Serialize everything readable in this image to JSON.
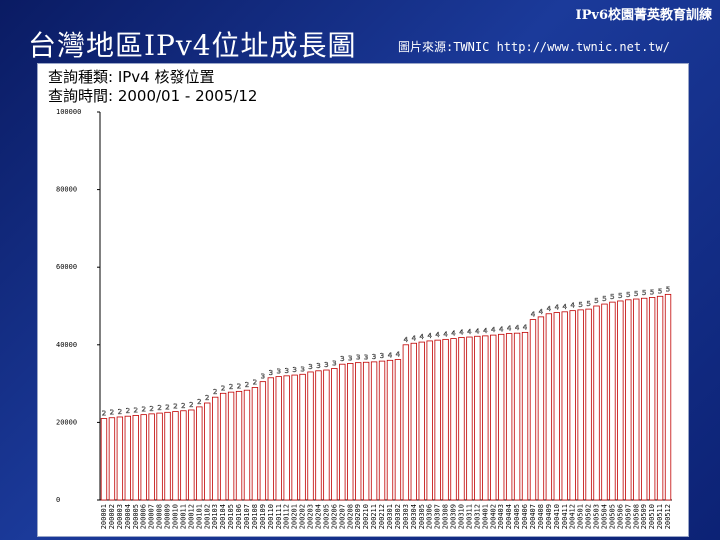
{
  "header": {
    "course_title": "IPv6校園菁英教育訓練",
    "slide_title": "台灣地區IPv4位址成長圖",
    "source_note": "圖片來源:TWNIC http://www.twnic.net.tw/"
  },
  "query": {
    "type_line": "查詢種類: IPv4 核發位置",
    "time_line": "查詢時間: 2000/01 - 2005/12"
  },
  "colors": {
    "bar_stroke": "#c00000",
    "axis": "#000000"
  },
  "chart_data": {
    "type": "bar",
    "title": "",
    "xlabel": "",
    "ylabel": "",
    "ylim": [
      0,
      100000
    ],
    "y_ticks": [
      0,
      20000,
      40000,
      60000,
      80000,
      100000
    ],
    "y_tick_labels": [
      "0",
      "20000",
      "40000",
      "60000",
      "80000",
      "100000"
    ],
    "categories": [
      "200001",
      "200002",
      "200003",
      "200004",
      "200005",
      "200006",
      "200007",
      "200008",
      "200009",
      "200010",
      "200011",
      "200012",
      "200101",
      "200102",
      "200103",
      "200104",
      "200105",
      "200106",
      "200107",
      "200108",
      "200109",
      "200110",
      "200111",
      "200112",
      "200201",
      "200202",
      "200203",
      "200204",
      "200205",
      "200206",
      "200207",
      "200208",
      "200209",
      "200210",
      "200211",
      "200212",
      "200301",
      "200302",
      "200303",
      "200304",
      "200305",
      "200306",
      "200307",
      "200308",
      "200309",
      "200310",
      "200311",
      "200312",
      "200401",
      "200402",
      "200403",
      "200404",
      "200405",
      "200406",
      "200407",
      "200408",
      "200409",
      "200410",
      "200411",
      "200412",
      "200501",
      "200502",
      "200503",
      "200504",
      "200505",
      "200506",
      "200507",
      "200508",
      "200509",
      "200510",
      "200511",
      "200512"
    ],
    "values": [
      21000,
      21200,
      21400,
      21600,
      21800,
      22000,
      22200,
      22400,
      22600,
      22800,
      23000,
      23200,
      24000,
      25000,
      26500,
      27500,
      27800,
      28000,
      28300,
      29000,
      30500,
      31500,
      31800,
      32000,
      32200,
      32400,
      33000,
      33300,
      33500,
      33900,
      35000,
      35200,
      35400,
      35500,
      35600,
      35800,
      36000,
      36200,
      40000,
      40400,
      40700,
      41000,
      41200,
      41400,
      41600,
      41900,
      42000,
      42200,
      42300,
      42500,
      42700,
      42900,
      43000,
      43200,
      46500,
      47200,
      48000,
      48300,
      48500,
      48800,
      49000,
      49200,
      50000,
      50500,
      51000,
      51300,
      51600,
      51800,
      52000,
      52200,
      52500,
      53000
    ],
    "data_labels": [
      "2",
      "2",
      "2",
      "2",
      "2",
      "2",
      "2",
      "2",
      "2",
      "2",
      "2",
      "2",
      "2",
      "2",
      "2",
      "2",
      "2",
      "2",
      "2",
      "2",
      "3",
      "3",
      "3",
      "3",
      "3",
      "3",
      "3",
      "3",
      "3",
      "3",
      "3",
      "3",
      "3",
      "3",
      "3",
      "3",
      "4",
      "4",
      "4",
      "4",
      "4",
      "4",
      "4",
      "4",
      "4",
      "4",
      "4",
      "4",
      "4",
      "4",
      "4",
      "4",
      "4",
      "4",
      "4",
      "4",
      "4",
      "4",
      "4",
      "4",
      "5",
      "5",
      "5",
      "5",
      "5",
      "5",
      "5",
      "5",
      "5",
      "5",
      "5",
      "5"
    ],
    "grid": false,
    "legend": "none"
  }
}
